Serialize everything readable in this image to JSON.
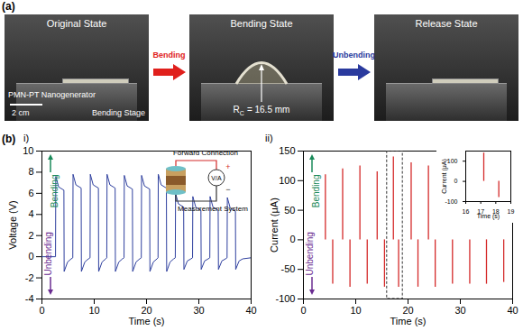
{
  "panel_a": {
    "label": "(a)",
    "photos": [
      {
        "title": "Original State",
        "labels": [
          "PMN-PT Nanogenerator",
          "Bending Stage"
        ],
        "scale_bar": "2 cm"
      },
      {
        "title": "Bending State",
        "radius": {
          "symbol": "R",
          "subscript": "C",
          "value": "= 16.5 mm"
        }
      },
      {
        "title": "Release State"
      }
    ],
    "arrows": [
      {
        "text": "Bending",
        "color": "#e0201c"
      },
      {
        "text": "Unbending",
        "color": "#2a3a9e"
      }
    ]
  },
  "panel_b": {
    "label": "(b)"
  },
  "chart_data": [
    {
      "panel": "i)",
      "type": "line",
      "color": "#2e3f9e",
      "xlabel": "Time (s)",
      "ylabel": "Voltage (V)",
      "xlim": [
        0,
        40
      ],
      "xticks": [
        0,
        10,
        20,
        30,
        40
      ],
      "ylim": [
        -4,
        10
      ],
      "yticks": [
        -4,
        -2,
        0,
        2,
        4,
        6,
        8,
        10
      ],
      "x": [
        0,
        2.6,
        2.65,
        3.2,
        4.2,
        4.25,
        4.9,
        5.6,
        5.9,
        5.95,
        6.5,
        7.5,
        7.55,
        8.2,
        8.9,
        9.2,
        9.25,
        9.8,
        10.8,
        10.85,
        11.5,
        12.2,
        12.4,
        12.45,
        13.0,
        14.0,
        14.05,
        14.7,
        15.4,
        15.7,
        15.75,
        16.3,
        17.3,
        17.35,
        18.0,
        18.7,
        19.0,
        19.05,
        19.6,
        20.6,
        20.65,
        21.3,
        22.0,
        22.2,
        22.25,
        22.8,
        23.8,
        23.85,
        24.5,
        25.2,
        25.5,
        25.55,
        26.1,
        27.1,
        27.15,
        27.8,
        28.5,
        28.8,
        28.85,
        29.4,
        30.4,
        30.45,
        31.1,
        31.8,
        32.1,
        32.15,
        32.7,
        33.7,
        33.75,
        34.4,
        35.1,
        35.4,
        35.45,
        36.0,
        37.0,
        37.05,
        37.7,
        38.4,
        40
      ],
      "values": [
        0,
        0,
        7.6,
        6.6,
        6.3,
        -1.4,
        -0.5,
        -0.2,
        -0.1,
        7.8,
        6.8,
        6.5,
        -1.4,
        -0.5,
        -0.2,
        -0.1,
        7.8,
        6.8,
        6.5,
        -1.4,
        -0.5,
        -0.2,
        -0.1,
        7.8,
        6.8,
        6.5,
        -1.4,
        -0.5,
        -0.2,
        -0.1,
        7.7,
        6.7,
        6.4,
        -1.4,
        -0.5,
        -0.2,
        -0.1,
        7.7,
        6.7,
        6.4,
        -1.4,
        -0.5,
        -0.2,
        -0.1,
        7.8,
        6.8,
        6.5,
        -1.4,
        -0.5,
        -0.2,
        -0.1,
        6.0,
        5.0,
        4.7,
        -1.2,
        -0.4,
        -0.2,
        -0.1,
        5.7,
        4.7,
        4.4,
        -1.2,
        -0.4,
        -0.2,
        -0.1,
        5.7,
        4.7,
        4.4,
        -1.2,
        -0.4,
        -0.2,
        -0.1,
        5.6,
        4.6,
        4.3,
        -1.2,
        -0.4,
        -0.2,
        -0.1
      ],
      "annotations": [
        {
          "text": "Bending",
          "color": "#1a8a5a"
        },
        {
          "text": "Unbending",
          "color": "#6a2c91"
        }
      ],
      "inset": {
        "title": "Forward Connection",
        "labels": [
          "V/A",
          "Measurement System"
        ],
        "signs": [
          "+",
          "−"
        ]
      }
    },
    {
      "panel": "ii)",
      "type": "stem",
      "color": "#d42a2a",
      "xlabel": "Time (s)",
      "ylabel": "Current (μA)",
      "xlim": [
        0,
        40
      ],
      "xticks": [
        0,
        10,
        20,
        30,
        40
      ],
      "ylim": [
        -100,
        150
      ],
      "yticks": [
        -100,
        -50,
        0,
        50,
        100,
        150
      ],
      "x": [
        4.2,
        5.6,
        7.5,
        8.9,
        10.8,
        12.2,
        14.1,
        15.5,
        17.2,
        18.2,
        20.6,
        21.9,
        23.9,
        25.2,
        28.5,
        31.8,
        35.0,
        38.3
      ],
      "values": [
        110,
        -75,
        120,
        -80,
        125,
        -75,
        115,
        -80,
        140,
        -80,
        130,
        -80,
        125,
        -80,
        -75,
        -75,
        -75,
        -72
      ],
      "annotations": [
        {
          "text": "Bending",
          "color": "#1a8a5a"
        },
        {
          "text": "Unbending",
          "color": "#6a2c91"
        }
      ],
      "inset": {
        "type": "stem",
        "xlabel": "Time (s)",
        "ylabel": "Current (μA)",
        "xlim": [
          16,
          19
        ],
        "xticks": [
          16,
          17,
          18,
          19
        ],
        "ylim": [
          -100,
          150
        ],
        "yticks": [
          -100,
          0,
          100
        ]
      }
    }
  ]
}
